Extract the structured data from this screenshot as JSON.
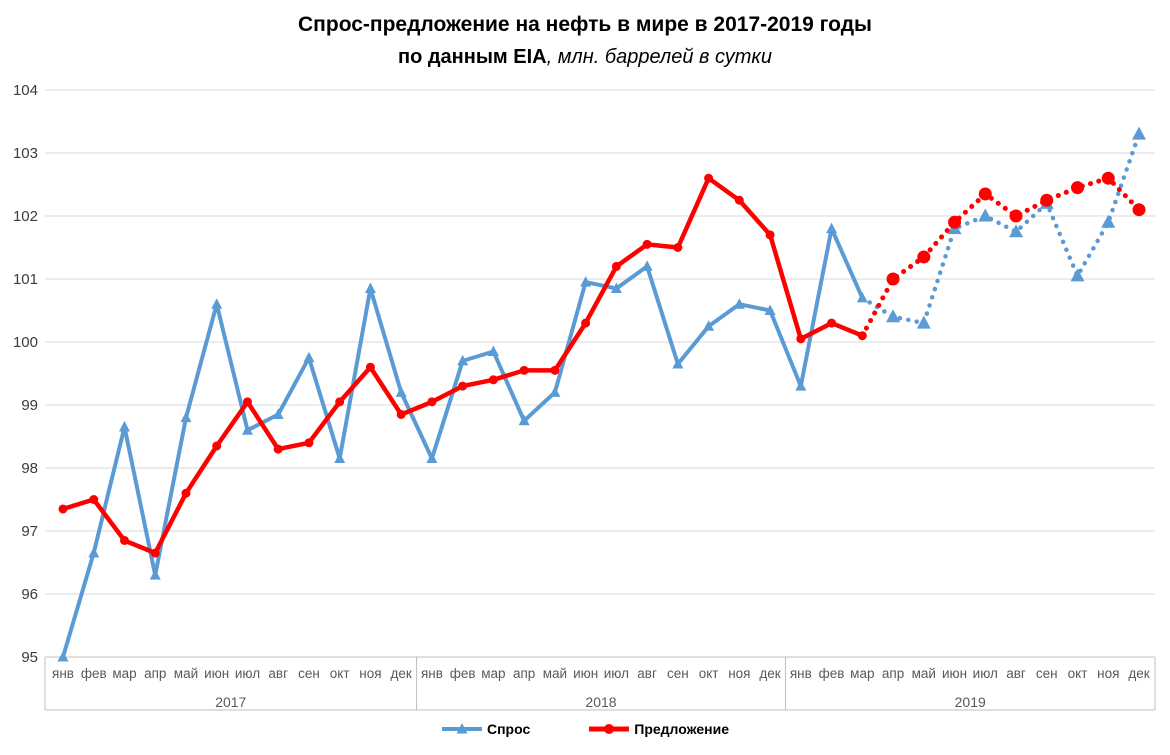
{
  "title": {
    "line1": "Спрос-предложение на нефть в мире в 2017-2019 годы",
    "line2_bold": "по данным EIA",
    "line2_italic": ", млн. баррелей в сутки"
  },
  "chart_data": {
    "type": "line",
    "months": [
      "янв",
      "фев",
      "мар",
      "апр",
      "май",
      "июн",
      "июл",
      "авг",
      "сен",
      "окт",
      "ноя",
      "дек"
    ],
    "years": [
      "2017",
      "2018",
      "2019"
    ],
    "y_ticks": [
      95,
      96,
      97,
      98,
      99,
      100,
      101,
      102,
      103,
      104
    ],
    "ylim": [
      95,
      104
    ],
    "grid": true,
    "legend_position": "bottom",
    "forecast_start_index": 26,
    "series": [
      {
        "name": "Спрос",
        "marker": "triangle",
        "color": "#5B9BD5",
        "values": [
          95.0,
          96.65,
          98.65,
          96.3,
          98.8,
          100.6,
          98.6,
          98.85,
          99.75,
          98.15,
          100.85,
          99.2,
          98.15,
          99.7,
          99.85,
          98.75,
          99.2,
          100.95,
          100.85,
          101.2,
          99.65,
          100.25,
          100.6,
          100.5,
          99.3,
          101.8,
          100.7,
          100.4,
          100.3,
          101.8,
          102.0,
          101.75,
          102.2,
          101.05,
          101.9,
          103.3
        ]
      },
      {
        "name": "Предложение",
        "marker": "circle",
        "color": "#FF0000",
        "values": [
          97.35,
          97.5,
          96.85,
          96.65,
          97.6,
          98.35,
          99.05,
          98.3,
          98.4,
          99.05,
          99.6,
          98.85,
          99.05,
          99.3,
          99.4,
          99.55,
          99.55,
          100.3,
          101.2,
          101.55,
          101.5,
          102.6,
          102.25,
          101.7,
          100.05,
          100.3,
          100.1,
          101.0,
          101.35,
          101.9,
          102.35,
          102.0,
          102.25,
          102.45,
          102.6,
          102.1
        ]
      }
    ],
    "colors": {
      "gridline": "#D9D9D9",
      "axis_border": "#BFBFBF",
      "y_tick_text": "#3b3b3b",
      "x_label_text": "#595959"
    }
  }
}
